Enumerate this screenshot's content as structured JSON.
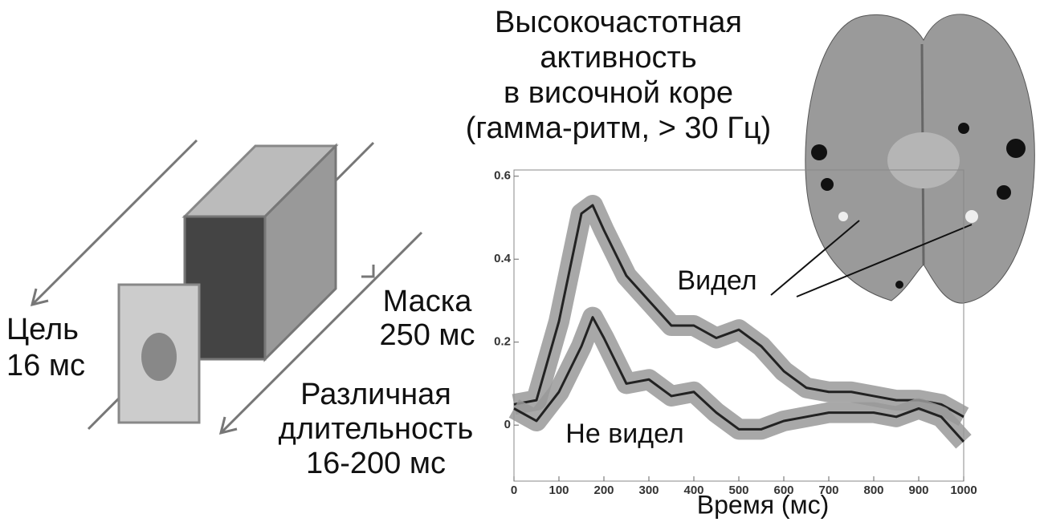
{
  "chart_data": {
    "type": "line",
    "title": [
      "Высокочастотная",
      "активность",
      "в височной коре",
      "(гамма-ритм, > 30 Гц)"
    ],
    "x_label": "Время (мс)",
    "x": [
      0,
      50,
      100,
      150,
      175,
      200,
      250,
      300,
      350,
      400,
      450,
      500,
      550,
      600,
      650,
      700,
      750,
      800,
      850,
      900,
      950,
      1000
    ],
    "series": [
      {
        "name": "Видел",
        "color": "#222222",
        "values": [
          0.05,
          0.06,
          0.25,
          0.51,
          0.53,
          0.47,
          0.36,
          0.3,
          0.24,
          0.24,
          0.21,
          0.23,
          0.19,
          0.13,
          0.09,
          0.08,
          0.08,
          0.07,
          0.06,
          0.06,
          0.05,
          0.02
        ]
      },
      {
        "name": "Не видел",
        "color": "#222222",
        "values": [
          0.04,
          0.01,
          0.08,
          0.19,
          0.26,
          0.21,
          0.1,
          0.11,
          0.07,
          0.08,
          0.03,
          -0.01,
          -0.01,
          0.01,
          0.02,
          0.03,
          0.03,
          0.03,
          0.02,
          0.04,
          0.02,
          -0.04
        ]
      }
    ],
    "xlim": [
      0,
      1000
    ],
    "xticks": [
      0,
      100,
      200,
      300,
      400,
      500,
      600,
      700,
      800,
      900,
      1000
    ],
    "ylim": [
      -0.135,
      0.615
    ],
    "yticks": [
      0,
      0.2,
      0.4,
      0.6
    ]
  },
  "diagram": {
    "target": [
      "Цель",
      "16 мс"
    ],
    "mask": [
      "Маска",
      "250 мс"
    ],
    "duration": [
      "Различная",
      "длительность",
      "16-200 мс"
    ]
  }
}
